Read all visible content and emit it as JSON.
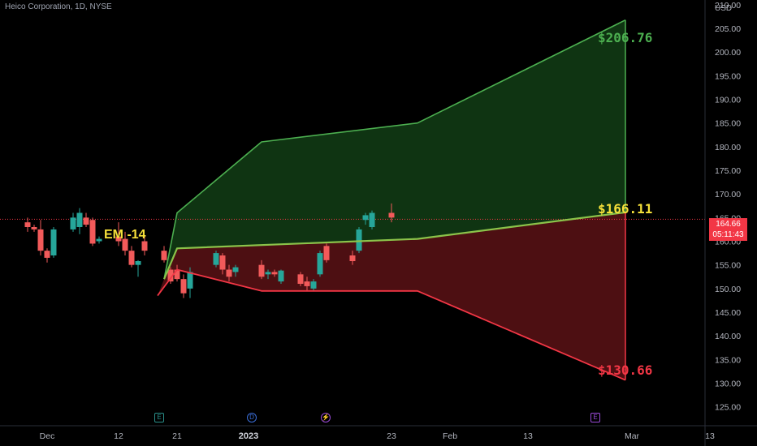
{
  "header": {
    "symbol": "Heico Corporation, 1D, NYSE",
    "currency": "USD"
  },
  "annotations": {
    "em_label": "EM -14",
    "target_high": "$206.76",
    "target_mid": "$166.11",
    "target_low": "$130.66"
  },
  "price_tag": {
    "price": "164.66",
    "countdown": "05:11:43"
  },
  "events": [
    {
      "icon": "earnings-icon",
      "glyph": "E"
    },
    {
      "icon": "dividend-icon",
      "glyph": "D"
    },
    {
      "icon": "split-icon",
      "glyph": "⚡"
    },
    {
      "icon": "earnings-icon",
      "glyph": "E"
    }
  ],
  "colors": {
    "up": "#26a69a",
    "down": "#f25a5a",
    "bull_zone": "#1b5e20",
    "bear_zone": "#6d1519",
    "bull_line": "#4caf50",
    "bear_line": "#f23645",
    "mid_line": "#8bc34a",
    "last_price": "#f23645"
  },
  "chart_data": {
    "type": "candlestick",
    "title": "Heico Corporation, 1D, NYSE",
    "y_axis": {
      "unit": "USD",
      "ylim": [
        121,
        211
      ],
      "ticks": [
        125,
        130,
        135,
        140,
        145,
        150,
        155,
        160,
        165,
        170,
        175,
        180,
        185,
        190,
        195,
        200,
        205,
        210
      ]
    },
    "x_axis": {
      "tick_labels": [
        "Dec",
        "12",
        "21",
        "2023",
        "23",
        "Feb",
        "13",
        "Mar",
        "13"
      ],
      "tick_dates": [
        "2022-12-01",
        "2022-12-12",
        "2022-12-21",
        "2023-01-01",
        "2023-01-23",
        "2023-02-01",
        "2023-02-13",
        "2023-03-01",
        "2023-03-13"
      ]
    },
    "candles": [
      {
        "date": "2022-11-28",
        "o": 164,
        "h": 165,
        "l": 162,
        "c": 163
      },
      {
        "date": "2022-11-29",
        "o": 163,
        "h": 163.5,
        "l": 162,
        "c": 162.5
      },
      {
        "date": "2022-11-30",
        "o": 162.5,
        "h": 164.5,
        "l": 157,
        "c": 158
      },
      {
        "date": "2022-12-01",
        "o": 158,
        "h": 158.5,
        "l": 155.5,
        "c": 156.5
      },
      {
        "date": "2022-12-02",
        "o": 157,
        "h": 163,
        "l": 156.5,
        "c": 162.5
      },
      {
        "date": "2022-12-05",
        "o": 162.5,
        "h": 166,
        "l": 162,
        "c": 165
      },
      {
        "date": "2022-12-06",
        "o": 163,
        "h": 167,
        "l": 161.5,
        "c": 166
      },
      {
        "date": "2022-12-07",
        "o": 165,
        "h": 166,
        "l": 163,
        "c": 163.5
      },
      {
        "date": "2022-12-08",
        "o": 164.5,
        "h": 165,
        "l": 159,
        "c": 159.5
      },
      {
        "date": "2022-12-09",
        "o": 160,
        "h": 161,
        "l": 159.5,
        "c": 160.5
      },
      {
        "date": "2022-12-12",
        "o": 161,
        "h": 164,
        "l": 159,
        "c": 160
      },
      {
        "date": "2022-12-13",
        "o": 160.5,
        "h": 162,
        "l": 157,
        "c": 158
      },
      {
        "date": "2022-12-14",
        "o": 158,
        "h": 159,
        "l": 154.5,
        "c": 155
      },
      {
        "date": "2022-12-15",
        "o": 155,
        "h": 156,
        "l": 152.5,
        "c": 155.8
      },
      {
        "date": "2022-12-16",
        "o": 160,
        "h": 161,
        "l": 157,
        "c": 158
      },
      {
        "date": "2022-12-19",
        "o": 158,
        "h": 159,
        "l": 155.5,
        "c": 156
      },
      {
        "date": "2022-12-20",
        "o": 154,
        "h": 154.5,
        "l": 151,
        "c": 151.5
      },
      {
        "date": "2022-12-21",
        "o": 154,
        "h": 155,
        "l": 151.5,
        "c": 152
      },
      {
        "date": "2022-12-22",
        "o": 152,
        "h": 153,
        "l": 148,
        "c": 149
      },
      {
        "date": "2022-12-23",
        "o": 150,
        "h": 154.5,
        "l": 148,
        "c": 153.5
      },
      {
        "date": "2022-12-27",
        "o": 155,
        "h": 158,
        "l": 154.5,
        "c": 157.5
      },
      {
        "date": "2022-12-28",
        "o": 157,
        "h": 157.5,
        "l": 153,
        "c": 154
      },
      {
        "date": "2022-12-29",
        "o": 154,
        "h": 155,
        "l": 151.5,
        "c": 152.5
      },
      {
        "date": "2022-12-30",
        "o": 153.5,
        "h": 155,
        "l": 152.5,
        "c": 154.5
      },
      {
        "date": "2023-01-03",
        "o": 155,
        "h": 156,
        "l": 152,
        "c": 152.5
      },
      {
        "date": "2023-01-04",
        "o": 153,
        "h": 154,
        "l": 152,
        "c": 153.5
      },
      {
        "date": "2023-01-05",
        "o": 153.5,
        "h": 154,
        "l": 152.5,
        "c": 153
      },
      {
        "date": "2023-01-06",
        "o": 151.5,
        "h": 154,
        "l": 151,
        "c": 153.8
      },
      {
        "date": "2023-01-09",
        "o": 153,
        "h": 153.5,
        "l": 150.5,
        "c": 151
      },
      {
        "date": "2023-01-10",
        "o": 151.5,
        "h": 152.5,
        "l": 149.5,
        "c": 150.5
      },
      {
        "date": "2023-01-11",
        "o": 150,
        "h": 152,
        "l": 149.5,
        "c": 151.5
      },
      {
        "date": "2023-01-12",
        "o": 153,
        "h": 158,
        "l": 152.5,
        "c": 157.5
      },
      {
        "date": "2023-01-13",
        "o": 159,
        "h": 159.5,
        "l": 155.5,
        "c": 156
      },
      {
        "date": "2023-01-17",
        "o": 157,
        "h": 158,
        "l": 155,
        "c": 155.8
      },
      {
        "date": "2023-01-18",
        "o": 158,
        "h": 163,
        "l": 157.5,
        "c": 162.5
      },
      {
        "date": "2023-01-19",
        "o": 164.5,
        "h": 166,
        "l": 163.5,
        "c": 165.5
      },
      {
        "date": "2023-01-20",
        "o": 163,
        "h": 166.5,
        "l": 162.5,
        "c": 166
      },
      {
        "date": "2023-01-23",
        "o": 166,
        "h": 168,
        "l": 164,
        "c": 165
      }
    ],
    "overlays": [
      {
        "name": "EM -14 upper",
        "points": [
          [
            "2022-12-19",
            152
          ],
          [
            "2022-12-21",
            166
          ],
          [
            "2023-01-03",
            181
          ],
          [
            "2023-01-27",
            185
          ],
          [
            "2023-02-28",
            206.76
          ]
        ]
      },
      {
        "name": "EM -14 center",
        "points": [
          [
            "2022-12-19",
            152
          ],
          [
            "2022-12-21",
            158.5
          ],
          [
            "2023-01-27",
            160.5
          ],
          [
            "2023-02-28",
            166.11
          ]
        ]
      },
      {
        "name": "EM -14 lower",
        "points": [
          [
            "2022-12-18",
            148.5
          ],
          [
            "2022-12-21",
            154
          ],
          [
            "2023-01-03",
            149.5
          ],
          [
            "2023-01-27",
            149.5
          ],
          [
            "2023-02-28",
            130.66
          ]
        ]
      }
    ],
    "price_line": 164.66
  }
}
